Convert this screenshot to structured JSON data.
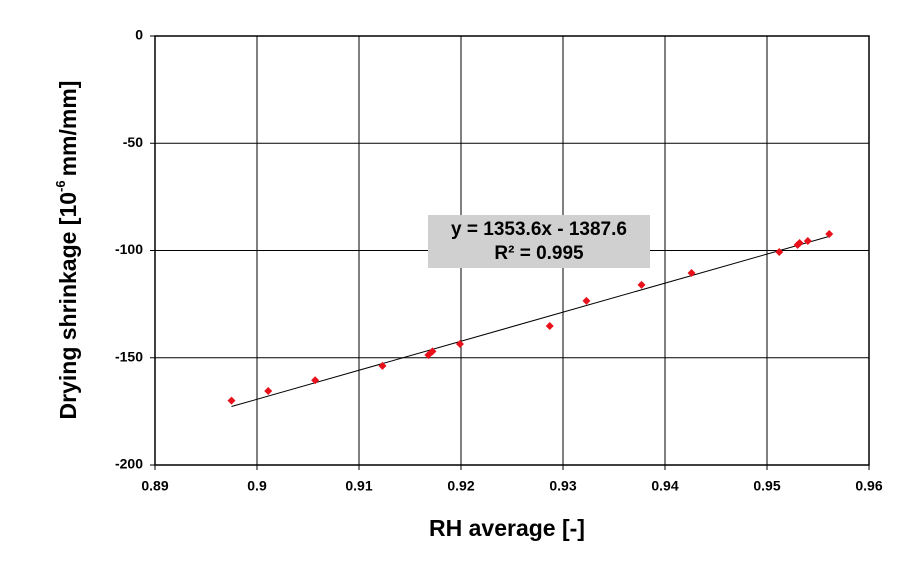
{
  "chart_data": {
    "type": "scatter",
    "x_label": "RH average [-]",
    "y_label": [
      "Drying shrinkage [10",
      "-6",
      "mm/mm]"
    ],
    "x": [
      0.8975,
      0.9011,
      0.9057,
      0.9123,
      0.9168,
      0.9172,
      0.9199,
      0.9287,
      0.9323,
      0.9377,
      0.9426,
      0.9512,
      0.953,
      0.9532,
      0.954,
      0.9561
    ],
    "values": [
      -170,
      -165.5,
      -160.5,
      -153.8,
      -148.7,
      -147,
      -143.6,
      -135.2,
      -123.5,
      -116,
      -110.5,
      -100.7,
      -97.4,
      -96.5,
      -95.6,
      -92.3
    ],
    "color": "#e8101a",
    "trendline": {
      "slope": 1353.6,
      "intercept": -1387.6,
      "label": "y = 1353.6x - 1387.6",
      "r2_label": "R² = 0.995"
    },
    "xlim": [
      0.89,
      0.96
    ],
    "xticks": [
      0.89,
      0.9,
      0.91,
      0.92,
      0.93,
      0.94,
      0.95,
      0.96
    ],
    "ylim": [
      -200,
      0
    ],
    "yticks": [
      0,
      -50,
      -100,
      -150,
      -200
    ],
    "grid": true
  }
}
